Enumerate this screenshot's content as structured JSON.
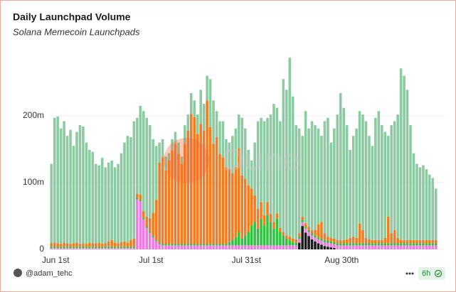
{
  "chart_data": {
    "type": "bar",
    "stacked": true,
    "title": "Daily Launchpad Volume",
    "subtitle": "Solana Memecoin Launchpads",
    "watermark": "Dune",
    "author": "@adam_tehc",
    "refresh": "6h",
    "grid": true,
    "ylim": [
      0,
      300
    ],
    "yticks": [
      0,
      {
        "value": 100,
        "label": "100m"
      },
      {
        "value": 200,
        "label": "200m"
      }
    ],
    "categories": [
      "Jun 1st",
      null,
      null,
      null,
      null,
      null,
      null,
      null,
      null,
      null,
      null,
      null,
      null,
      null,
      null,
      null,
      null,
      null,
      null,
      null,
      null,
      null,
      null,
      null,
      null,
      null,
      null,
      null,
      null,
      null,
      "Jul 1st",
      null,
      null,
      null,
      null,
      null,
      null,
      null,
      null,
      null,
      null,
      null,
      null,
      null,
      null,
      null,
      null,
      null,
      null,
      null,
      null,
      null,
      null,
      null,
      null,
      null,
      null,
      null,
      null,
      null,
      "Jul 31st",
      null,
      null,
      null,
      null,
      null,
      null,
      null,
      null,
      null,
      null,
      null,
      null,
      null,
      null,
      null,
      null,
      null,
      null,
      null,
      null,
      null,
      null,
      null,
      null,
      null,
      null,
      null,
      null,
      null,
      "Aug 30th",
      null,
      null,
      null,
      null,
      null,
      null,
      null,
      null,
      null,
      null,
      null,
      null,
      null,
      null,
      null,
      null,
      null,
      null,
      null,
      null,
      null,
      null,
      null,
      null,
      null,
      null,
      null,
      null,
      null,
      null,
      null
    ],
    "series": [
      {
        "color": "#1c1c1c",
        "values": [
          0,
          0,
          0,
          0,
          0,
          0,
          0,
          0,
          0,
          0,
          0,
          0,
          0,
          0,
          0,
          0,
          0,
          0,
          0,
          0,
          0,
          0,
          0,
          0,
          0,
          0,
          0,
          0,
          0,
          0,
          0,
          0,
          0,
          0,
          0,
          0,
          0,
          0,
          0,
          0,
          0,
          0,
          0,
          0,
          0,
          0,
          0,
          0,
          0,
          0,
          0,
          0,
          0,
          0,
          0,
          0,
          0,
          0,
          0,
          0,
          0,
          0,
          0,
          0,
          0,
          0,
          0,
          0,
          0,
          0,
          0,
          0,
          0,
          0,
          0,
          0,
          0,
          0,
          10,
          35,
          25,
          20,
          15,
          12,
          9,
          7,
          5,
          4,
          3,
          2,
          0,
          0,
          0,
          0,
          0,
          0,
          0,
          0,
          0,
          0,
          0,
          0,
          0,
          0,
          0,
          0,
          0,
          0,
          0,
          0,
          0,
          0,
          0,
          0,
          0,
          0,
          0,
          0,
          0,
          0,
          0,
          0
        ]
      },
      {
        "color": "#f27be3",
        "values": [
          2,
          2,
          2,
          2,
          2,
          2,
          2,
          2,
          2,
          2,
          2,
          2,
          2,
          2,
          2,
          2,
          2,
          2,
          2,
          2,
          2,
          2,
          2,
          2,
          2,
          2,
          2,
          75,
          72,
          45,
          32,
          25,
          18,
          12,
          8,
          6,
          6,
          6,
          6,
          6,
          6,
          6,
          6,
          6,
          6,
          6,
          6,
          6,
          6,
          6,
          6,
          6,
          6,
          6,
          6,
          6,
          6,
          6,
          6,
          6,
          6,
          6,
          6,
          6,
          6,
          6,
          6,
          6,
          6,
          6,
          6,
          6,
          6,
          6,
          6,
          6,
          6,
          6,
          6,
          6,
          6,
          6,
          6,
          6,
          6,
          6,
          6,
          6,
          6,
          6,
          6,
          6,
          6,
          6,
          6,
          6,
          6,
          6,
          6,
          6,
          6,
          6,
          6,
          6,
          6,
          6,
          6,
          6,
          6,
          6,
          6,
          6,
          6,
          6,
          6,
          6,
          6,
          6,
          6,
          6,
          6,
          6
        ]
      },
      {
        "color": "#2ec441",
        "values": [
          2,
          2,
          2,
          2,
          2,
          2,
          2,
          2,
          2,
          2,
          2,
          2,
          2,
          2,
          2,
          2,
          2,
          2,
          2,
          2,
          2,
          2,
          2,
          2,
          2,
          2,
          2,
          2,
          2,
          2,
          2,
          2,
          2,
          2,
          2,
          2,
          2,
          2,
          2,
          2,
          2,
          2,
          2,
          2,
          2,
          2,
          2,
          2,
          2,
          2,
          2,
          2,
          2,
          2,
          2,
          2,
          5,
          8,
          12,
          20,
          10,
          15,
          20,
          30,
          35,
          25,
          40,
          30,
          45,
          35,
          25,
          40,
          20,
          15,
          10,
          8,
          5,
          4,
          3,
          3,
          3,
          3,
          3,
          3,
          3,
          3,
          3,
          3,
          3,
          3,
          3,
          3,
          3,
          3,
          3,
          3,
          3,
          3,
          3,
          3,
          3,
          3,
          3,
          3,
          3,
          3,
          3,
          3,
          3,
          3,
          3,
          3,
          3,
          3,
          3,
          3,
          3,
          3,
          3,
          3,
          3,
          3
        ]
      },
      {
        "color": "#f47b20",
        "values": [
          5,
          6,
          5,
          4,
          6,
          5,
          4,
          5,
          6,
          4,
          5,
          4,
          6,
          5,
          5,
          6,
          4,
          5,
          8,
          10,
          6,
          5,
          7,
          8,
          6,
          10,
          12,
          6,
          8,
          10,
          15,
          20,
          35,
          60,
          120,
          130,
          110,
          125,
          140,
          150,
          135,
          120,
          150,
          170,
          195,
          190,
          165,
          180,
          170,
          215,
          175,
          150,
          160,
          135,
          130,
          115,
          110,
          100,
          105,
          125,
          95,
          85,
          70,
          55,
          40,
          30,
          25,
          15,
          20,
          12,
          10,
          8,
          6,
          5,
          5,
          5,
          5,
          5,
          5,
          5,
          5,
          5,
          5,
          8,
          20,
          25,
          10,
          6,
          5,
          5,
          5,
          5,
          5,
          6,
          8,
          10,
          8,
          30,
          20,
          8,
          6,
          5,
          5,
          5,
          5,
          8,
          40,
          15,
          20,
          8,
          5,
          5,
          5,
          5,
          5,
          5,
          5,
          5,
          5,
          5,
          5,
          5
        ]
      },
      {
        "color": "#8ccaa1",
        "values": [
          119,
          187,
          190,
          173,
          182,
          161,
          171,
          146,
          166,
          178,
          175,
          152,
          139,
          137,
          119,
          116,
          129,
          114,
          118,
          119,
          113,
          119,
          133,
          148,
          160,
          154,
          176,
          114,
          133,
          150,
          148,
          139,
          110,
          81,
          30,
          27,
          21,
          11,
          17,
          18,
          17,
          11,
          28,
          24,
          31,
          25,
          29,
          51,
          40,
          37,
          72,
          65,
          39,
          49,
          54,
          42,
          39,
          56,
          58,
          51,
          86,
          75,
          53,
          42,
          79,
          131,
          126,
          141,
          126,
          149,
          177,
          158,
          160,
          229,
          218,
          268,
          213,
          171,
          157,
          121,
          168,
          147,
          163,
          157,
          143,
          129,
          168,
          178,
          143,
          165,
          188,
          220,
          198,
          171,
          132,
          151,
          164,
          168,
          173,
          175,
          155,
          141,
          183,
          193,
          172,
          159,
          121,
          162,
          163,
          185,
          257,
          246,
          225,
          172,
          130,
          114,
          109,
          112,
          106,
          98,
          93,
          77
        ]
      }
    ]
  }
}
